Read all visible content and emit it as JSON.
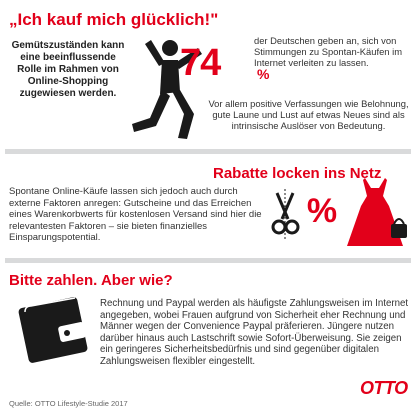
{
  "section_happy": {
    "title": "„Ich kauf mich glücklich!\"",
    "intro": "Gemütszuständen kann eine beeinflussende Rolle im Rahmen von Online-Shopping zugewiesen werden.",
    "stat_number": "74",
    "stat_unit": "%",
    "stat_text": "der Deutschen geben an, sich von Stimmungen zu Spontan-Käufen im Internet verleiten zu lassen.",
    "detail_text": "Vor allem positive Verfassungen wie Belohnung, gute Laune und Lust auf etwas Neues sind als intrinsische Auslöser von Bedeutung."
  },
  "section_discounts": {
    "title": "Rabatte locken ins Netz",
    "text": "Spontane Online-Käufe lassen sich jedoch auch durch externe Faktoren anregen: Gutscheine und das Erreichen eines Warenkorbwerts für kostenlosen Versand sind hier die relevantesten Faktoren – sie bieten finanzielles Einsparungspotential.",
    "percent_symbol": "%"
  },
  "section_payment": {
    "title": "Bitte zahlen. Aber wie?",
    "text": "Rechnung und Paypal werden als häufigste Zahlungsweisen im Internet angegeben, wobei Frauen aufgrund von Sicherheit eher Rechnung und Männer wegen der Convenience Paypal präferieren. Jüngere nutzen darüber hinaus auch Lastschrift sowie Sofort-Überweisung. Sie zeigen ein geringeres Sicherheitsbedürfnis und sind gegenüber digitalen Zahlungsweisen flexibler eingestellt."
  },
  "footer": {
    "source": "Quelle: OTTO Lifestyle-Studie 2017",
    "logo": "OTTO"
  },
  "colors": {
    "accent": "#e2001a",
    "text": "#333333",
    "divider": "#d9dadb",
    "icon": "#1a1a1a"
  },
  "icons": [
    "cheering-person-icon",
    "scissors-icon",
    "percent-icon",
    "dress-icon",
    "handbag-icon",
    "wallet-icon"
  ]
}
